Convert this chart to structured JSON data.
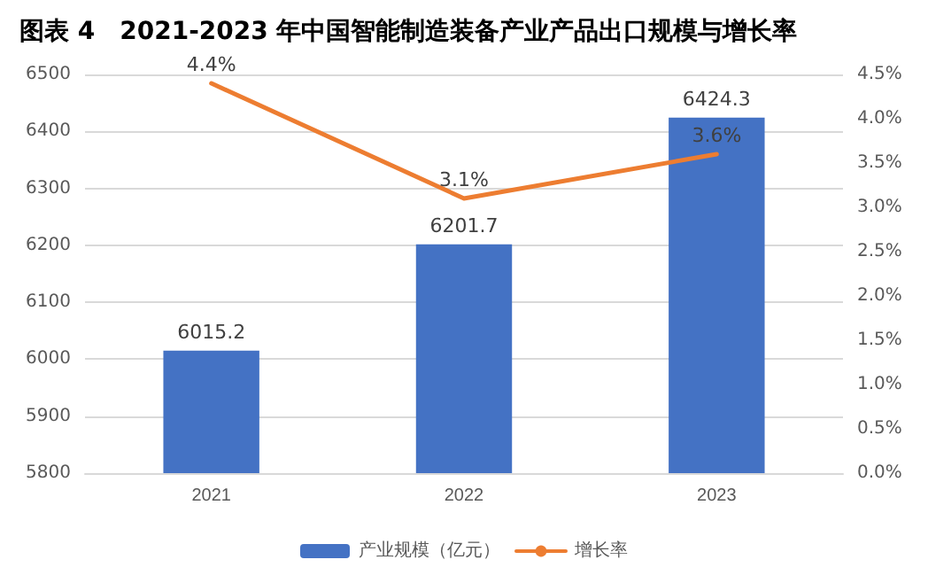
{
  "chart_data": {
    "type": "bar",
    "title": "图表 4　2021-2023 年中国智能制造装备产业产品出口规模与增长率",
    "categories": [
      "2021",
      "2022",
      "2023"
    ],
    "series": [
      {
        "name": "产业规模（亿元）",
        "color": "#4472c4",
        "values": [
          6015.2,
          6201.7,
          6424.3
        ],
        "value_labels": [
          "6015.2",
          "6201.7",
          "6424.3"
        ]
      },
      {
        "name": "增长率",
        "type": "line",
        "axis": "y2",
        "color": "#ed7d31",
        "values": [
          4.4,
          3.1,
          3.6
        ],
        "value_labels": [
          "4.4%",
          "3.1%",
          "3.6%"
        ]
      }
    ],
    "ylim": [
      5800,
      6500
    ],
    "yticks": [
      5800,
      5900,
      6000,
      6100,
      6200,
      6300,
      6400,
      6500
    ],
    "y2lim": [
      0,
      4.5
    ],
    "y2ticks": [
      {
        "value": 0,
        "label": "0.0%"
      },
      {
        "value": 0.5,
        "label": "0.5%"
      },
      {
        "value": 1,
        "label": "1.0%"
      },
      {
        "value": 1.5,
        "label": "1.5%"
      },
      {
        "value": 2,
        "label": "2.0%"
      },
      {
        "value": 2.5,
        "label": "2.5%"
      },
      {
        "value": 3,
        "label": "3.0%"
      },
      {
        "value": 3.5,
        "label": "3.5%"
      },
      {
        "value": 4,
        "label": "4.0%"
      },
      {
        "value": 4.5,
        "label": "4.5%"
      }
    ],
    "grid": "y",
    "legend": "bottom",
    "marker": "none",
    "line_style": "solid"
  }
}
